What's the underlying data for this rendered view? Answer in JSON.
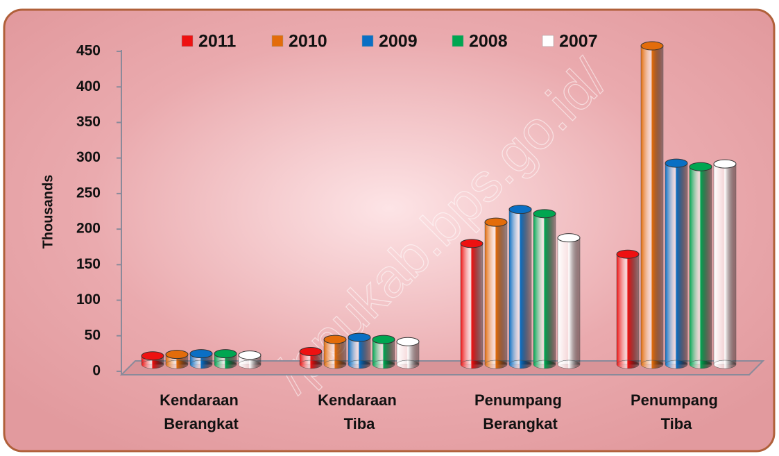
{
  "chart_data": {
    "type": "bar3d",
    "y_axis_label": "Thousands",
    "watermark": "/ppukab.bps.go.id/",
    "categories": [
      "Kendaraan Berangkat",
      "Kendaraan Tiba",
      "Penumpang Berangkat",
      "Penumpang Tiba"
    ],
    "series": [
      {
        "name": "2011",
        "color": "#ee1111",
        "values": [
          12,
          18,
          170,
          155
        ]
      },
      {
        "name": "2010",
        "color": "#e36c0a",
        "values": [
          14,
          35,
          200,
          448
        ]
      },
      {
        "name": "2009",
        "color": "#0a6fc4",
        "values": [
          15,
          38,
          218,
          283
        ]
      },
      {
        "name": "2008",
        "color": "#00a651",
        "values": [
          15,
          35,
          212,
          278
        ]
      },
      {
        "name": "2007",
        "color": "#ffffff",
        "values": [
          13,
          32,
          178,
          282
        ]
      }
    ],
    "ylim": [
      0,
      450
    ],
    "yticks": [
      0,
      50,
      100,
      150,
      200,
      250,
      300,
      350,
      400,
      450
    ],
    "legend": "top"
  }
}
